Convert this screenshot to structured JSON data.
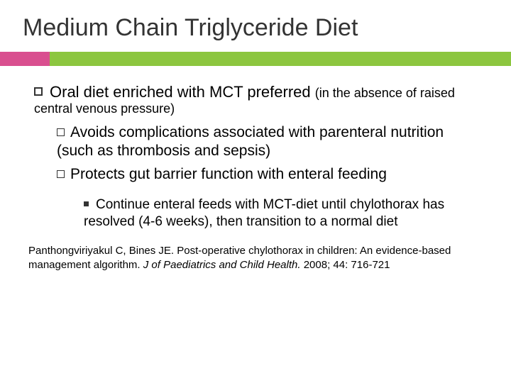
{
  "title": "Medium Chain Triglyceride Diet",
  "colors": {
    "accent_pink": "#d94f8f",
    "accent_green": "#8cc63f",
    "text": "#000000",
    "title_text": "#333333",
    "background": "#ffffff"
  },
  "typography": {
    "title_fontsize": 34,
    "l1_fontsize": 22,
    "l1_sub_fontsize": 18,
    "l2_fontsize": 21,
    "l3_fontsize": 19,
    "citation_fontsize": 15,
    "font_family": "Arial"
  },
  "bullets": {
    "l1": {
      "main": "Oral diet enriched with MCT preferred ",
      "sub": "(in the absence of raised central venous pressure)",
      "children": [
        {
          "lead": "Avoids",
          "rest": " complications associated with parenteral nutrition (such as thrombosis and sepsis)"
        },
        {
          "lead": "Protects",
          "rest": " gut barrier function with enteral feeding"
        }
      ],
      "l3": {
        "lead": "Continue",
        "rest": " enteral feeds with MCT-diet until chylothorax has resolved (4-6 weeks), then transition to a normal diet"
      }
    }
  },
  "citation": {
    "authors": "Panthongviriyakul C, Bines JE. ",
    "title_plain": "Post-operative chylothorax in children: An evidence-based management algorithm. ",
    "journal_italic": "J of Paediatrics and Child Health. ",
    "year_vol": "2008; 44: 716-721"
  }
}
